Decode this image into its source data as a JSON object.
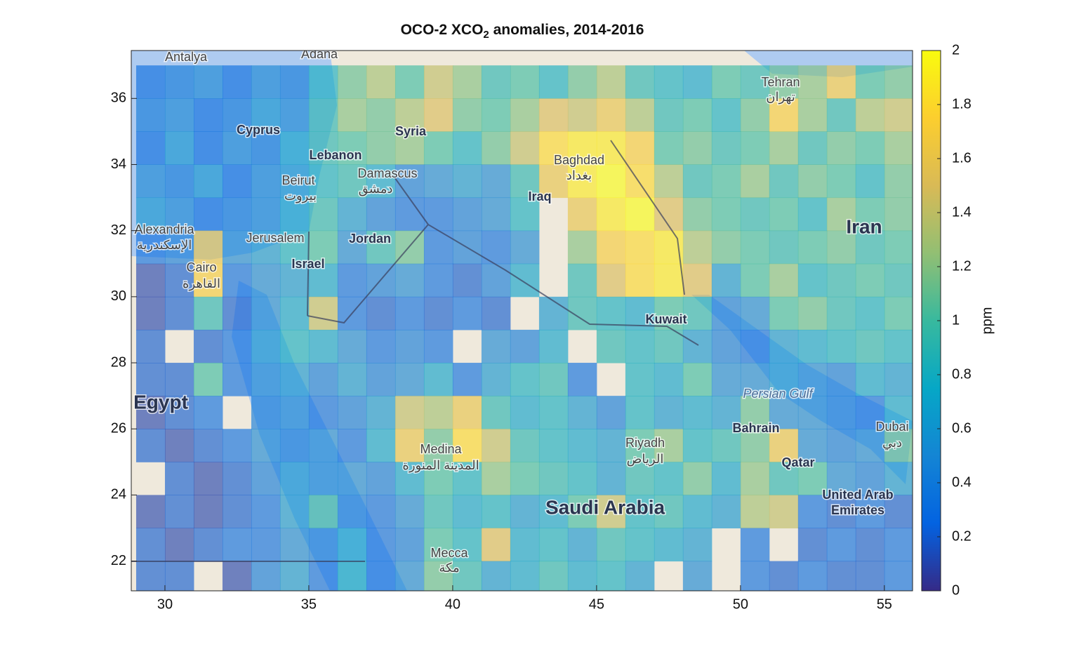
{
  "chart_data": {
    "type": "heatmap",
    "title": {
      "main": "OCO-2 XCO",
      "sub": "2",
      "rest": " anomalies, 2014-2016"
    },
    "colorbar_label": "ppm",
    "x": [
      29.5,
      30.5,
      31.5,
      32.5,
      33.5,
      34.5,
      35.5,
      36.5,
      37.5,
      38.5,
      39.5,
      40.5,
      41.5,
      42.5,
      43.5,
      44.5,
      45.5,
      46.5,
      47.5,
      48.5,
      49.5,
      50.5,
      51.5,
      52.5,
      53.5,
      54.5,
      55.5
    ],
    "y": [
      36.5,
      35.5,
      34.5,
      33.5,
      32.5,
      31.5,
      30.5,
      29.5,
      28.5,
      27.5,
      26.5,
      25.5,
      24.5,
      23.5,
      22.5,
      21.5
    ],
    "values": [
      [
        0.3,
        0.4,
        0.5,
        0.3,
        0.5,
        0.4,
        0.8,
        1.1,
        1.3,
        1.0,
        1.4,
        1.2,
        0.9,
        1.0,
        0.8,
        1.1,
        1.3,
        0.9,
        0.8,
        0.7,
        1.0,
        0.9,
        1.1,
        1.2,
        1.6,
        1.0,
        1.1
      ],
      [
        0.4,
        0.5,
        0.3,
        0.4,
        0.6,
        0.5,
        0.9,
        1.2,
        1.1,
        1.3,
        1.5,
        1.1,
        1.0,
        1.2,
        1.5,
        1.4,
        1.6,
        1.3,
        0.9,
        1.0,
        0.8,
        1.1,
        1.7,
        1.2,
        0.9,
        1.3,
        1.4
      ],
      [
        0.3,
        0.6,
        0.3,
        0.5,
        0.4,
        0.7,
        0.9,
        1.0,
        1.1,
        1.2,
        1.0,
        0.8,
        1.1,
        1.4,
        1.8,
        1.9,
        1.9,
        1.7,
        1.0,
        1.1,
        0.9,
        1.0,
        1.2,
        0.9,
        1.1,
        1.0,
        1.2
      ],
      [
        0.5,
        0.4,
        0.6,
        0.3,
        0.5,
        0.6,
        0.8,
        0.9,
        0.7,
        0.4,
        0.5,
        0.6,
        0.5,
        0.9,
        1.6,
        1.9,
        2.0,
        1.8,
        1.3,
        0.9,
        1.0,
        1.2,
        0.9,
        1.1,
        1.0,
        0.8,
        1.1
      ],
      [
        0.6,
        0.5,
        0.3,
        0.4,
        0.5,
        0.7,
        0.9,
        0.6,
        0.4,
        0.3,
        0.3,
        0.4,
        0.5,
        0.8,
        null,
        1.6,
        1.9,
        2.0,
        1.5,
        1.1,
        1.0,
        0.9,
        1.0,
        0.8,
        1.2,
        1.0,
        1.1
      ],
      [
        0.3,
        0.4,
        1.6,
        0.5,
        0.6,
        0.8,
        1.0,
        0.5,
        0.9,
        1.1,
        0.3,
        0.4,
        0.3,
        0.5,
        null,
        1.2,
        1.7,
        1.8,
        1.9,
        1.3,
        1.1,
        1.0,
        0.9,
        1.0,
        1.1,
        0.9,
        1.0
      ],
      [
        0.1,
        0.2,
        1.7,
        0.3,
        0.5,
        0.6,
        0.7,
        0.3,
        0.4,
        0.5,
        0.3,
        0.2,
        0.4,
        0.7,
        null,
        0.9,
        1.5,
        1.8,
        1.9,
        1.5,
        0.6,
        1.0,
        1.2,
        0.8,
        0.9,
        1.0,
        0.9
      ],
      [
        0.1,
        0.2,
        0.9,
        0.2,
        0.5,
        0.7,
        1.4,
        0.3,
        0.2,
        0.3,
        0.2,
        0.3,
        0.2,
        null,
        0.6,
        0.9,
        0.8,
        0.7,
        1.0,
        0.9,
        0.4,
        0.5,
        1.0,
        1.1,
        0.9,
        0.8,
        1.0
      ],
      [
        0.2,
        null,
        0.2,
        0.3,
        0.6,
        0.8,
        0.7,
        0.5,
        0.3,
        0.4,
        0.3,
        null,
        0.5,
        0.4,
        0.7,
        null,
        0.9,
        0.8,
        0.9,
        0.6,
        0.4,
        0.3,
        0.6,
        0.7,
        0.8,
        0.9,
        0.8
      ],
      [
        0.2,
        0.2,
        1.0,
        0.3,
        0.5,
        0.6,
        0.4,
        0.6,
        0.4,
        0.5,
        0.7,
        0.3,
        0.6,
        0.8,
        0.9,
        0.3,
        null,
        0.8,
        0.7,
        1.0,
        0.5,
        0.5,
        0.6,
        0.5,
        0.4,
        0.7,
        0.6
      ],
      [
        0.1,
        0.2,
        0.3,
        null,
        0.4,
        0.5,
        0.3,
        0.4,
        0.6,
        1.4,
        1.3,
        1.6,
        0.9,
        0.7,
        0.8,
        0.6,
        0.4,
        0.8,
        0.6,
        0.7,
        0.6,
        1.1,
        0.5,
        0.5,
        0.4,
        0.3,
        0.7
      ],
      [
        0.2,
        0.1,
        0.2,
        0.3,
        0.5,
        0.4,
        0.5,
        0.3,
        0.7,
        1.6,
        1.1,
        1.8,
        1.4,
        0.9,
        0.8,
        0.7,
        0.6,
        1.0,
        1.2,
        0.8,
        0.9,
        1.1,
        1.6,
        0.5,
        0.4,
        0.5,
        1.1
      ],
      [
        null,
        0.2,
        0.1,
        0.2,
        0.4,
        0.6,
        0.5,
        0.5,
        0.4,
        0.7,
        1.0,
        0.8,
        1.2,
        1.0,
        0.9,
        0.8,
        0.6,
        0.9,
        0.8,
        1.1,
        0.7,
        1.2,
        0.9,
        1.0,
        0.5,
        0.4,
        0.6
      ],
      [
        0.1,
        0.2,
        0.1,
        0.2,
        0.3,
        0.6,
        1.0,
        0.4,
        0.3,
        0.5,
        0.9,
        0.7,
        0.8,
        0.6,
        0.7,
        1.0,
        1.4,
        0.8,
        0.9,
        0.7,
        0.6,
        1.3,
        1.4,
        0.3,
        0.2,
        0.3,
        0.2
      ],
      [
        0.2,
        0.1,
        0.2,
        0.3,
        0.3,
        0.5,
        0.4,
        0.7,
        0.3,
        0.4,
        1.0,
        0.8,
        1.5,
        0.7,
        0.8,
        0.6,
        0.9,
        0.8,
        0.7,
        0.6,
        null,
        0.3,
        null,
        0.2,
        0.3,
        0.2,
        0.3
      ],
      [
        0.2,
        0.2,
        null,
        0.1,
        0.4,
        0.6,
        0.3,
        0.8,
        0.3,
        0.5,
        1.1,
        0.9,
        0.6,
        0.7,
        0.9,
        0.7,
        0.8,
        0.6,
        null,
        0.5,
        null,
        0.3,
        0.2,
        0.3,
        0.2,
        0.2,
        0.3
      ]
    ],
    "xlim": [
      28.83,
      55.98
    ],
    "ylim": [
      21.1,
      37.45
    ],
    "xticks": [
      30,
      35,
      40,
      45,
      50,
      55
    ],
    "yticks": [
      22,
      24,
      26,
      28,
      30,
      32,
      34,
      36
    ],
    "clim": [
      0,
      2
    ],
    "cticks": [
      0,
      0.2,
      0.4,
      0.6,
      0.8,
      1,
      1.2,
      1.4,
      1.6,
      1.8,
      2
    ],
    "colormap": [
      "#352a87",
      "#0363e1",
      "#1485d4",
      "#06a7c6",
      "#38b99e",
      "#92bf73",
      "#d9ba56",
      "#fcce2e",
      "#f9fb0e"
    ],
    "map_labels": [
      "Antalya",
      "Adana",
      "Cyprus",
      "Syria",
      "Lebanon",
      "Beirut",
      "بيروت",
      "Damascus",
      "دمشق",
      "Baghdad",
      "بغداد",
      "Iraq",
      "Tehran",
      "تهران",
      "Iran",
      "Alexandria",
      "الإسكندرية",
      "Jerusalem",
      "Jordan",
      "Israel",
      "Cairo",
      "القاهرة",
      "Kuwait",
      "Egypt",
      "Persian Gulf",
      "Bahrain",
      "Dubai",
      "دبي",
      "Medina",
      "المدينة المنورة",
      "Riyadh",
      "الرياض",
      "Qatar",
      "Saudi Arabia",
      "United Arab",
      "Emirates",
      "Mecca",
      "مكة"
    ]
  }
}
